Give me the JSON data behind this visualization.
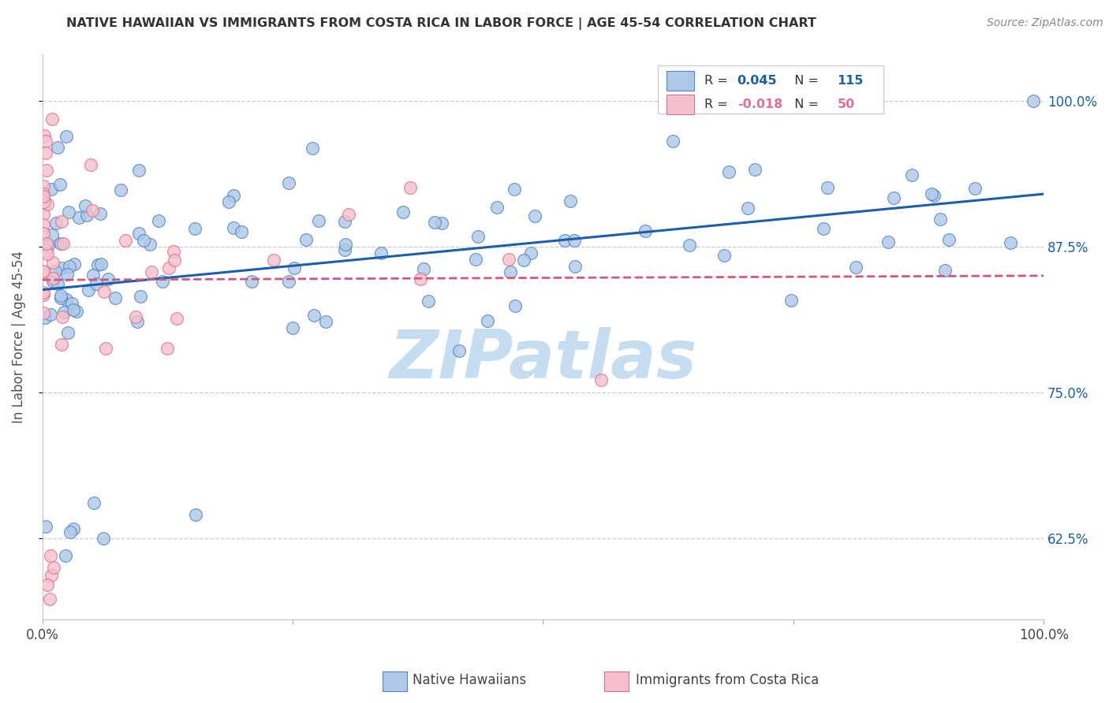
{
  "title": "NATIVE HAWAIIAN VS IMMIGRANTS FROM COSTA RICA IN LABOR FORCE | AGE 45-54 CORRELATION CHART",
  "source": "Source: ZipAtlas.com",
  "ylabel": "In Labor Force | Age 45-54",
  "xlim": [
    0.0,
    1.0
  ],
  "ylim": [
    0.555,
    1.04
  ],
  "yticks": [
    0.625,
    0.75,
    0.875,
    1.0
  ],
  "ytick_labels": [
    "62.5%",
    "75.0%",
    "87.5%",
    "100.0%"
  ],
  "legend_blue_label": "Native Hawaiians",
  "legend_pink_label": "Immigrants from Costa Rica",
  "R_blue": 0.045,
  "N_blue": 115,
  "R_pink": -0.018,
  "N_pink": 50,
  "blue_face_color": "#adc8e8",
  "blue_edge_color": "#5585c8",
  "pink_face_color": "#f5c0cb",
  "pink_edge_color": "#e07090",
  "blue_line_color": "#1a5faa",
  "pink_line_color": "#d05880",
  "right_axis_color": "#1a5faa",
  "watermark_color": "#c5ddf0",
  "background_color": "#ffffff",
  "grid_color": "#cccccc",
  "title_color": "#333333",
  "source_color": "#888888",
  "ylabel_color": "#555555"
}
